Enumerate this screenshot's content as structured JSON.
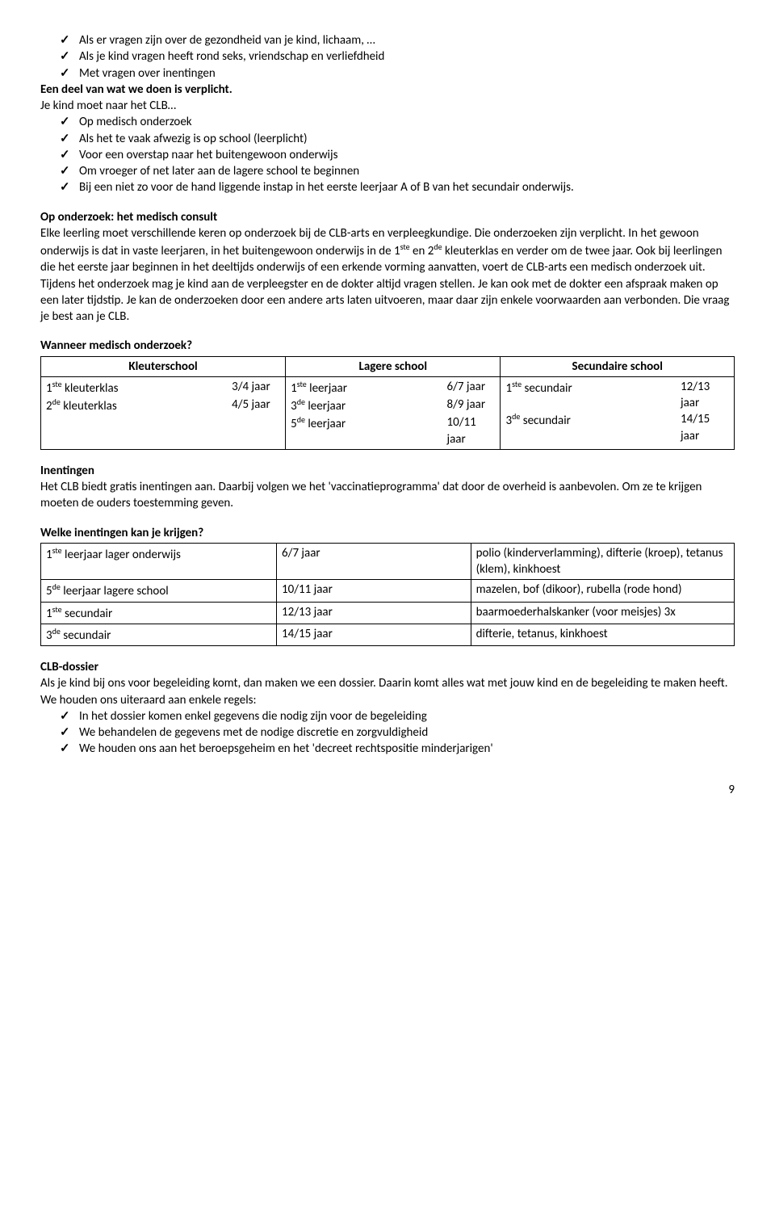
{
  "intro_list": [
    "Als er vragen zijn over de gezondheid van je kind, lichaam, …",
    "Als je kind vragen heeft rond seks, vriendschap en verliefdheid",
    "Met vragen over inentingen"
  ],
  "intro_line1": "Een deel van wat we doen is verplicht.",
  "intro_line2": "Je kind moet naar het CLB…",
  "clb_list": [
    "Op medisch onderzoek",
    "Als het te vaak afwezig is op school (leerplicht)",
    "Voor een overstap naar het buitengewoon onderwijs",
    "Om vroeger of net later aan de lagere school te beginnen",
    "Bij een niet zo voor de hand liggende instap in het eerste leerjaar A of B van het secundair onderwijs."
  ],
  "consult_heading": "Op onderzoek: het medisch consult",
  "consult_body": "Elke leerling moet verschillende keren op onderzoek bij de CLB-arts en verpleegkundige. Die onderzoeken zijn verplicht. In het gewoon onderwijs is dat in vaste leerjaren, in het buitengewoon onderwijs in de 1ste en 2de kleuterklas en verder om de twee jaar. Ook bij leerlingen die het eerste jaar beginnen in het deeltijds onderwijs of een erkende vorming aanvatten, voert de CLB-arts een medisch onderzoek uit.",
  "consult_body2": "Tijdens het onderzoek mag je kind aan de verpleegster en de dokter altijd vragen stellen. Je kan ook met de dokter een afspraak maken op een later tijdstip. Je kan de onderzoeken door een andere arts laten uitvoeren, maar daar zijn enkele voorwaarden aan verbonden. Die vraag je best aan je CLB.",
  "wanneer_heading": "Wanneer medisch onderzoek?",
  "sched_table": {
    "headers": [
      "Kleuterschool",
      "Lagere school",
      "Secundaire school"
    ],
    "rows": [
      [
        {
          "label_html": "1<sup>ste</sup> kleuterklas",
          "age": "3/4 jaar"
        },
        {
          "label_html": "1<sup>ste</sup> leerjaar",
          "age": "6/7 jaar"
        },
        {
          "label_html": "1<sup>ste</sup> secundair",
          "age": "12/13 jaar"
        }
      ],
      [
        {
          "label_html": "2<sup>de</sup> kleuterklas",
          "age": "4/5 jaar"
        },
        {
          "label_html": "3<sup>de</sup> leerjaar",
          "age": "8/9 jaar"
        },
        {
          "label_html": "3<sup>de</sup> secundair",
          "age": "14/15 jaar"
        }
      ],
      [
        null,
        {
          "label_html": "5<sup>de</sup> leerjaar",
          "age": "10/11 jaar"
        },
        null
      ]
    ]
  },
  "inentingen_heading": "Inentingen",
  "inentingen_body": "Het CLB biedt gratis inentingen aan. Daarbij volgen we het 'vaccinatieprogramma' dat door de overheid is aanbevolen. Om ze te krijgen moeten de ouders toestemming geven.",
  "welke_heading": "Welke inentingen kan je krijgen?",
  "vacc_table": {
    "rows": [
      {
        "c1_html": "1<sup>ste</sup> leerjaar lager onderwijs",
        "c2": "6/7 jaar",
        "c3": "polio (kinderverlamming), difterie (kroep), tetanus (klem), kinkhoest"
      },
      {
        "c1_html": "5<sup>de</sup> leerjaar lagere school",
        "c2": "10/11 jaar",
        "c3": "mazelen, bof (dikoor), rubella (rode hond)"
      },
      {
        "c1_html": "1<sup>ste</sup> secundair",
        "c2": "12/13 jaar",
        "c3": "baarmoederhalskanker (voor meisjes) 3x"
      },
      {
        "c1_html": "3<sup>de</sup> secundair",
        "c2": "14/15 jaar",
        "c3": "difterie, tetanus, kinkhoest"
      }
    ]
  },
  "dossier_heading": "CLB-dossier",
  "dossier_body": "Als je kind bij ons voor begeleiding komt, dan maken we een dossier. Daarin komt alles wat met jouw kind en de begeleiding te maken heeft. We houden ons uiteraard aan enkele regels:",
  "dossier_list": [
    "In het dossier komen enkel gegevens die nodig zijn voor de begeleiding",
    "We behandelen de gegevens met de nodige discretie en zorgvuldigheid",
    "We houden ons aan het beroepsgeheim en het 'decreet rechtspositie minderjarigen'"
  ],
  "page_number": "9"
}
